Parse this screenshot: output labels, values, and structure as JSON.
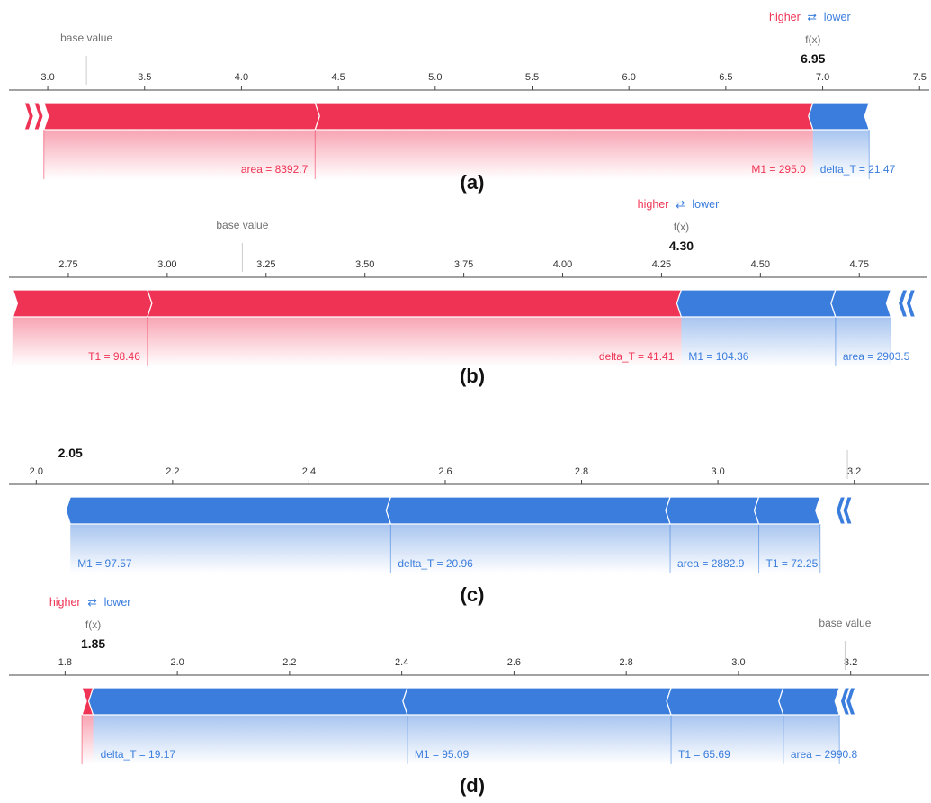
{
  "colors": {
    "higher": "#ef3354",
    "lower": "#3b7ddd",
    "axis": "#444444"
  },
  "chart_data": [
    {
      "type": "force",
      "caption": "(a)",
      "base_value_label": "base value",
      "fx_label": "f(x)",
      "fx_value": "6.95",
      "legend": {
        "higher": "higher",
        "arrows": "⇄",
        "lower": "lower"
      },
      "xlim": [
        2.8,
        7.55
      ],
      "ticks": [
        3.0,
        3.5,
        4.0,
        4.5,
        5.0,
        5.5,
        6.0,
        6.5,
        7.0,
        7.5
      ],
      "tick_labels": [
        "3.0",
        "3.5",
        "4.0",
        "4.5",
        "5.0",
        "5.5",
        "6.0",
        "6.5",
        "7.0",
        "7.5"
      ],
      "base_value": 3.2,
      "output_value": 6.95,
      "positive": [
        {
          "label": "area = 8392.7",
          "start": 2.98,
          "end": 4.38
        },
        {
          "label": "M1 = 295.0",
          "start": 4.38,
          "end": 6.95
        }
      ],
      "positive_tail": [
        2.88,
        2.93
      ],
      "negative": [
        {
          "label": "delta_T = 21.47",
          "start": 6.95,
          "end": 7.24
        }
      ],
      "negative_tail": []
    },
    {
      "type": "force",
      "caption": "(b)",
      "base_value_label": "base value",
      "fx_label": "f(x)",
      "fx_value": "4.30",
      "legend": {
        "higher": "higher",
        "arrows": "⇄",
        "lower": "lower"
      },
      "xlim": [
        2.6,
        4.92
      ],
      "ticks": [
        2.75,
        3.0,
        3.25,
        3.5,
        3.75,
        4.0,
        4.25,
        4.5,
        4.75
      ],
      "tick_labels": [
        "2.75",
        "3.00",
        "3.25",
        "3.50",
        "3.75",
        "4.00",
        "4.25",
        "4.50",
        "4.75"
      ],
      "base_value": 3.19,
      "output_value": 4.3,
      "positive": [
        {
          "label": "T1 = 98.46",
          "start": 2.61,
          "end": 2.95
        },
        {
          "label": "delta_T = 41.41",
          "start": 2.95,
          "end": 4.3
        }
      ],
      "positive_tail": [],
      "negative": [
        {
          "label": "M1 = 104.36",
          "start": 4.3,
          "end": 4.69
        },
        {
          "label": "area = 2903.5",
          "start": 4.69,
          "end": 4.83
        }
      ],
      "negative_tail": [
        4.86,
        4.88
      ]
    },
    {
      "type": "force",
      "caption": "(c)",
      "base_value_label": "",
      "fx_label": "",
      "fx_value": "2.05",
      "legend": null,
      "xlim": [
        1.96,
        3.31
      ],
      "ticks": [
        2.0,
        2.2,
        2.4,
        2.6,
        2.8,
        3.0,
        3.2
      ],
      "tick_labels": [
        "2.0",
        "2.2",
        "2.4",
        "2.6",
        "2.8",
        "3.0",
        "3.2"
      ],
      "base_value": 3.19,
      "output_value": 2.05,
      "positive": [],
      "positive_tail": [],
      "negative": [
        {
          "label": "M1 = 97.57",
          "start": 2.05,
          "end": 2.52
        },
        {
          "label": "delta_T = 20.96",
          "start": 2.52,
          "end": 2.93
        },
        {
          "label": "area = 2882.9",
          "start": 2.93,
          "end": 3.06
        },
        {
          "label": "T1 = 72.25",
          "start": 3.06,
          "end": 3.15
        }
      ],
      "negative_tail": [
        3.18,
        3.19
      ]
    },
    {
      "type": "force",
      "caption": "(d)",
      "base_value_label": "base value",
      "fx_label": "f(x)",
      "fx_value": "1.85",
      "legend": {
        "higher": "higher",
        "arrows": "⇄",
        "lower": "lower"
      },
      "xlim": [
        1.7,
        3.34
      ],
      "ticks": [
        1.8,
        2.0,
        2.2,
        2.4,
        2.6,
        2.8,
        3.0,
        3.2
      ],
      "tick_labels": [
        "1.8",
        "2.0",
        "2.2",
        "2.4",
        "2.6",
        "2.8",
        "3.0",
        "3.2"
      ],
      "base_value": 3.19,
      "output_value": 1.85,
      "positive": [
        {
          "label": "",
          "start": 1.83,
          "end": 1.85
        }
      ],
      "positive_tail": [],
      "negative": [
        {
          "label": "delta_T = 19.17",
          "start": 1.85,
          "end": 2.41
        },
        {
          "label": "M1 = 95.09",
          "start": 2.41,
          "end": 2.88
        },
        {
          "label": "T1 = 65.69",
          "start": 2.88,
          "end": 3.08
        },
        {
          "label": "area = 2990.8",
          "start": 3.08,
          "end": 3.18
        }
      ],
      "negative_tail": [
        3.19,
        3.2
      ]
    }
  ]
}
